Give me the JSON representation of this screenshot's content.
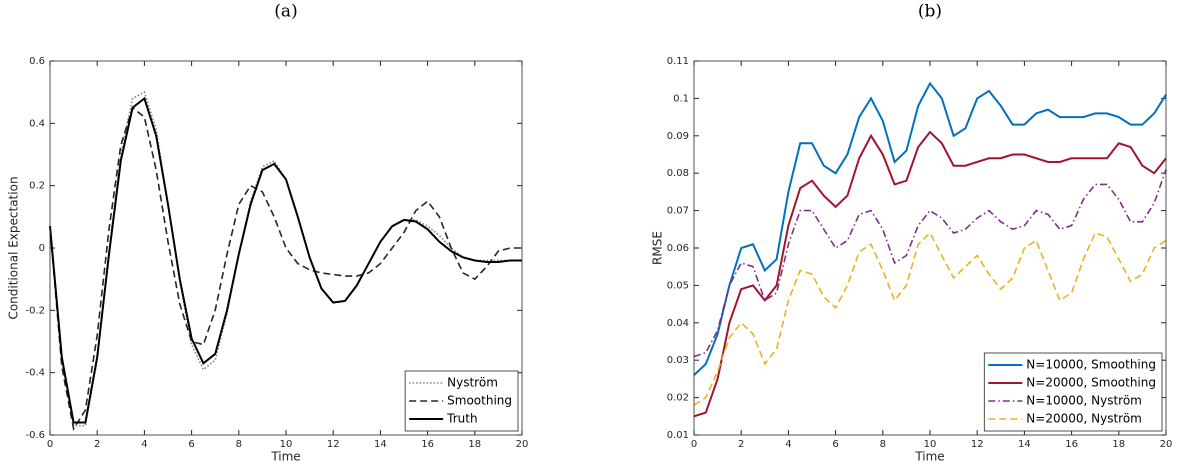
{
  "chart_data": [
    {
      "type": "line",
      "title": "(a)",
      "xlabel": "Time",
      "ylabel": "Conditional Expectation",
      "x": [
        0,
        0.5,
        1,
        1.5,
        2,
        2.5,
        3,
        3.5,
        4,
        4.5,
        5,
        5.5,
        6,
        6.5,
        7,
        7.5,
        8,
        8.5,
        9,
        9.5,
        10,
        10.5,
        11,
        11.5,
        12,
        12.5,
        13,
        13.5,
        14,
        14.5,
        15,
        15.5,
        16,
        16.5,
        17,
        17.5,
        18,
        18.5,
        19,
        19.5,
        20
      ],
      "xlim": [
        0,
        20
      ],
      "xticks": [
        0,
        2,
        4,
        6,
        8,
        10,
        12,
        14,
        16,
        18,
        20
      ],
      "ylim": [
        -0.6,
        0.6
      ],
      "yticks": [
        -0.6,
        -0.4,
        -0.2,
        0,
        0.2,
        0.4,
        0.6
      ],
      "legend": "lower right",
      "series": [
        {
          "name": "Nyström",
          "color": "#808080",
          "style": "dotted",
          "values": [
            0.07,
            -0.36,
            -0.57,
            -0.57,
            -0.36,
            -0.01,
            0.3,
            0.48,
            0.5,
            0.38,
            0.14,
            -0.11,
            -0.31,
            -0.39,
            -0.36,
            -0.21,
            -0.02,
            0.15,
            0.26,
            0.28,
            0.22,
            0.1,
            -0.03,
            -0.13,
            -0.175,
            -0.17,
            -0.12,
            -0.05,
            0.02,
            0.07,
            0.09,
            0.09,
            0.07,
            0.04,
            0.0,
            -0.03,
            -0.04,
            -0.04,
            -0.04,
            -0.04,
            -0.04
          ]
        },
        {
          "name": "Smoothing",
          "color": "#262626",
          "style": "dashed",
          "values": [
            0.07,
            -0.38,
            -0.58,
            -0.52,
            -0.28,
            0.06,
            0.33,
            0.45,
            0.42,
            0.25,
            0.02,
            -0.18,
            -0.3,
            -0.31,
            -0.2,
            -0.02,
            0.14,
            0.2,
            0.18,
            0.1,
            0.0,
            -0.05,
            -0.07,
            -0.08,
            -0.085,
            -0.09,
            -0.09,
            -0.08,
            -0.05,
            0.0,
            0.05,
            0.12,
            0.15,
            0.1,
            0.0,
            -0.08,
            -0.1,
            -0.06,
            -0.01,
            0.0,
            0.0
          ]
        },
        {
          "name": "Truth",
          "color": "#000000",
          "style": "solid",
          "values": [
            0.07,
            -0.35,
            -0.56,
            -0.56,
            -0.35,
            -0.02,
            0.28,
            0.45,
            0.48,
            0.36,
            0.14,
            -0.1,
            -0.29,
            -0.37,
            -0.34,
            -0.2,
            -0.02,
            0.14,
            0.25,
            0.27,
            0.22,
            0.1,
            -0.03,
            -0.13,
            -0.175,
            -0.17,
            -0.12,
            -0.05,
            0.02,
            0.07,
            0.09,
            0.085,
            0.06,
            0.02,
            -0.01,
            -0.03,
            -0.04,
            -0.045,
            -0.045,
            -0.04,
            -0.04
          ]
        }
      ]
    },
    {
      "type": "line",
      "title": "(b)",
      "xlabel": "Time",
      "ylabel": "RMSE",
      "x": [
        0,
        0.5,
        1,
        1.5,
        2,
        2.5,
        3,
        3.5,
        4,
        4.5,
        5,
        5.5,
        6,
        6.5,
        7,
        7.5,
        8,
        8.5,
        9,
        9.5,
        10,
        10.5,
        11,
        11.5,
        12,
        12.5,
        13,
        13.5,
        14,
        14.5,
        15,
        15.5,
        16,
        16.5,
        17,
        17.5,
        18,
        18.5,
        19,
        19.5,
        20
      ],
      "xlim": [
        0,
        20
      ],
      "xticks": [
        0,
        2,
        4,
        6,
        8,
        10,
        12,
        14,
        16,
        18,
        20
      ],
      "ylim": [
        0.01,
        0.11
      ],
      "yticks": [
        0.01,
        0.02,
        0.03,
        0.04,
        0.05,
        0.06,
        0.07,
        0.08,
        0.09,
        0.1,
        0.11
      ],
      "legend": "lower right",
      "series": [
        {
          "name": "N=10000, Smoothing",
          "color": "#0072BD",
          "style": "solid",
          "values": [
            0.026,
            0.029,
            0.037,
            0.05,
            0.06,
            0.061,
            0.054,
            0.057,
            0.075,
            0.088,
            0.088,
            0.082,
            0.08,
            0.085,
            0.095,
            0.1,
            0.094,
            0.083,
            0.086,
            0.098,
            0.104,
            0.1,
            0.09,
            0.092,
            0.1,
            0.102,
            0.098,
            0.093,
            0.093,
            0.096,
            0.097,
            0.095,
            0.095,
            0.095,
            0.096,
            0.096,
            0.095,
            0.093,
            0.093,
            0.096,
            0.101
          ]
        },
        {
          "name": "N=20000, Smoothing",
          "color": "#A2142F",
          "style": "solid",
          "values": [
            0.015,
            0.016,
            0.025,
            0.04,
            0.049,
            0.05,
            0.046,
            0.05,
            0.066,
            0.076,
            0.078,
            0.074,
            0.071,
            0.074,
            0.084,
            0.09,
            0.085,
            0.077,
            0.078,
            0.087,
            0.091,
            0.088,
            0.082,
            0.082,
            0.083,
            0.084,
            0.084,
            0.085,
            0.085,
            0.084,
            0.083,
            0.083,
            0.084,
            0.084,
            0.084,
            0.084,
            0.088,
            0.087,
            0.082,
            0.08,
            0.084
          ]
        },
        {
          "name": "N=10000, Nyström",
          "color": "#7E2F8E",
          "style": "dashdot",
          "values": [
            0.031,
            0.032,
            0.038,
            0.05,
            0.056,
            0.055,
            0.046,
            0.048,
            0.061,
            0.07,
            0.07,
            0.065,
            0.06,
            0.062,
            0.069,
            0.07,
            0.065,
            0.056,
            0.058,
            0.066,
            0.07,
            0.068,
            0.064,
            0.065,
            0.068,
            0.07,
            0.067,
            0.065,
            0.066,
            0.07,
            0.069,
            0.065,
            0.066,
            0.073,
            0.077,
            0.077,
            0.073,
            0.067,
            0.067,
            0.072,
            0.081
          ]
        },
        {
          "name": "N=20000, Nyström",
          "color": "#EDB120",
          "style": "dashed",
          "values": [
            0.018,
            0.02,
            0.027,
            0.036,
            0.04,
            0.037,
            0.029,
            0.033,
            0.046,
            0.054,
            0.053,
            0.047,
            0.044,
            0.05,
            0.059,
            0.061,
            0.054,
            0.046,
            0.05,
            0.061,
            0.064,
            0.058,
            0.052,
            0.055,
            0.058,
            0.053,
            0.049,
            0.052,
            0.06,
            0.062,
            0.054,
            0.046,
            0.048,
            0.057,
            0.064,
            0.063,
            0.057,
            0.051,
            0.053,
            0.06,
            0.062
          ]
        }
      ]
    }
  ]
}
